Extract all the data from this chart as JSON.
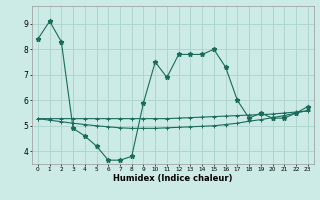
{
  "xlabel": "Humidex (Indice chaleur)",
  "bg_color": "#cceae6",
  "grid_color": "#aad4cc",
  "line_color": "#1a6b5a",
  "xlim": [
    -0.5,
    23.5
  ],
  "ylim": [
    3.5,
    9.7
  ],
  "yticks": [
    4,
    5,
    6,
    7,
    8,
    9
  ],
  "xticks": [
    0,
    1,
    2,
    3,
    4,
    5,
    6,
    7,
    8,
    9,
    10,
    11,
    12,
    13,
    14,
    15,
    16,
    17,
    18,
    19,
    20,
    21,
    22,
    23
  ],
  "xtick_labels": [
    "0",
    "1",
    "2",
    "3",
    "4",
    "5",
    "6",
    "7",
    "8",
    "9",
    "10",
    "11",
    "12",
    "13",
    "14",
    "15",
    "16",
    "17",
    "18",
    "19",
    "20",
    "21",
    "22",
    "23"
  ],
  "series1_x": [
    0,
    1,
    2,
    3,
    4,
    5,
    6,
    7,
    8,
    9,
    10,
    11,
    12,
    13,
    14,
    15,
    16,
    17,
    18,
    19,
    20,
    21,
    22,
    23
  ],
  "series1_y": [
    8.4,
    9.1,
    8.3,
    4.9,
    4.6,
    4.2,
    3.65,
    3.65,
    3.8,
    5.9,
    7.5,
    6.9,
    7.8,
    7.8,
    7.8,
    8.0,
    7.3,
    6.0,
    5.3,
    5.5,
    5.3,
    5.3,
    5.5,
    5.75
  ],
  "series2_x": [
    0,
    1,
    2,
    3,
    4,
    5,
    6,
    7,
    8,
    9,
    10,
    11,
    12,
    13,
    14,
    15,
    16,
    17,
    18,
    19,
    20,
    21,
    22,
    23
  ],
  "series2_y": [
    5.28,
    5.28,
    5.28,
    5.28,
    5.28,
    5.28,
    5.28,
    5.28,
    5.28,
    5.28,
    5.28,
    5.28,
    5.3,
    5.32,
    5.34,
    5.36,
    5.38,
    5.4,
    5.42,
    5.44,
    5.46,
    5.5,
    5.54,
    5.58
  ],
  "series3_x": [
    0,
    1,
    2,
    3,
    4,
    5,
    6,
    7,
    8,
    9,
    10,
    11,
    12,
    13,
    14,
    15,
    16,
    17,
    18,
    19,
    20,
    21,
    22,
    23
  ],
  "series3_y": [
    5.28,
    5.22,
    5.16,
    5.1,
    5.05,
    5.0,
    4.96,
    4.92,
    4.9,
    4.9,
    4.9,
    4.92,
    4.94,
    4.96,
    4.98,
    5.0,
    5.05,
    5.1,
    5.18,
    5.24,
    5.32,
    5.4,
    5.5,
    5.6
  ]
}
